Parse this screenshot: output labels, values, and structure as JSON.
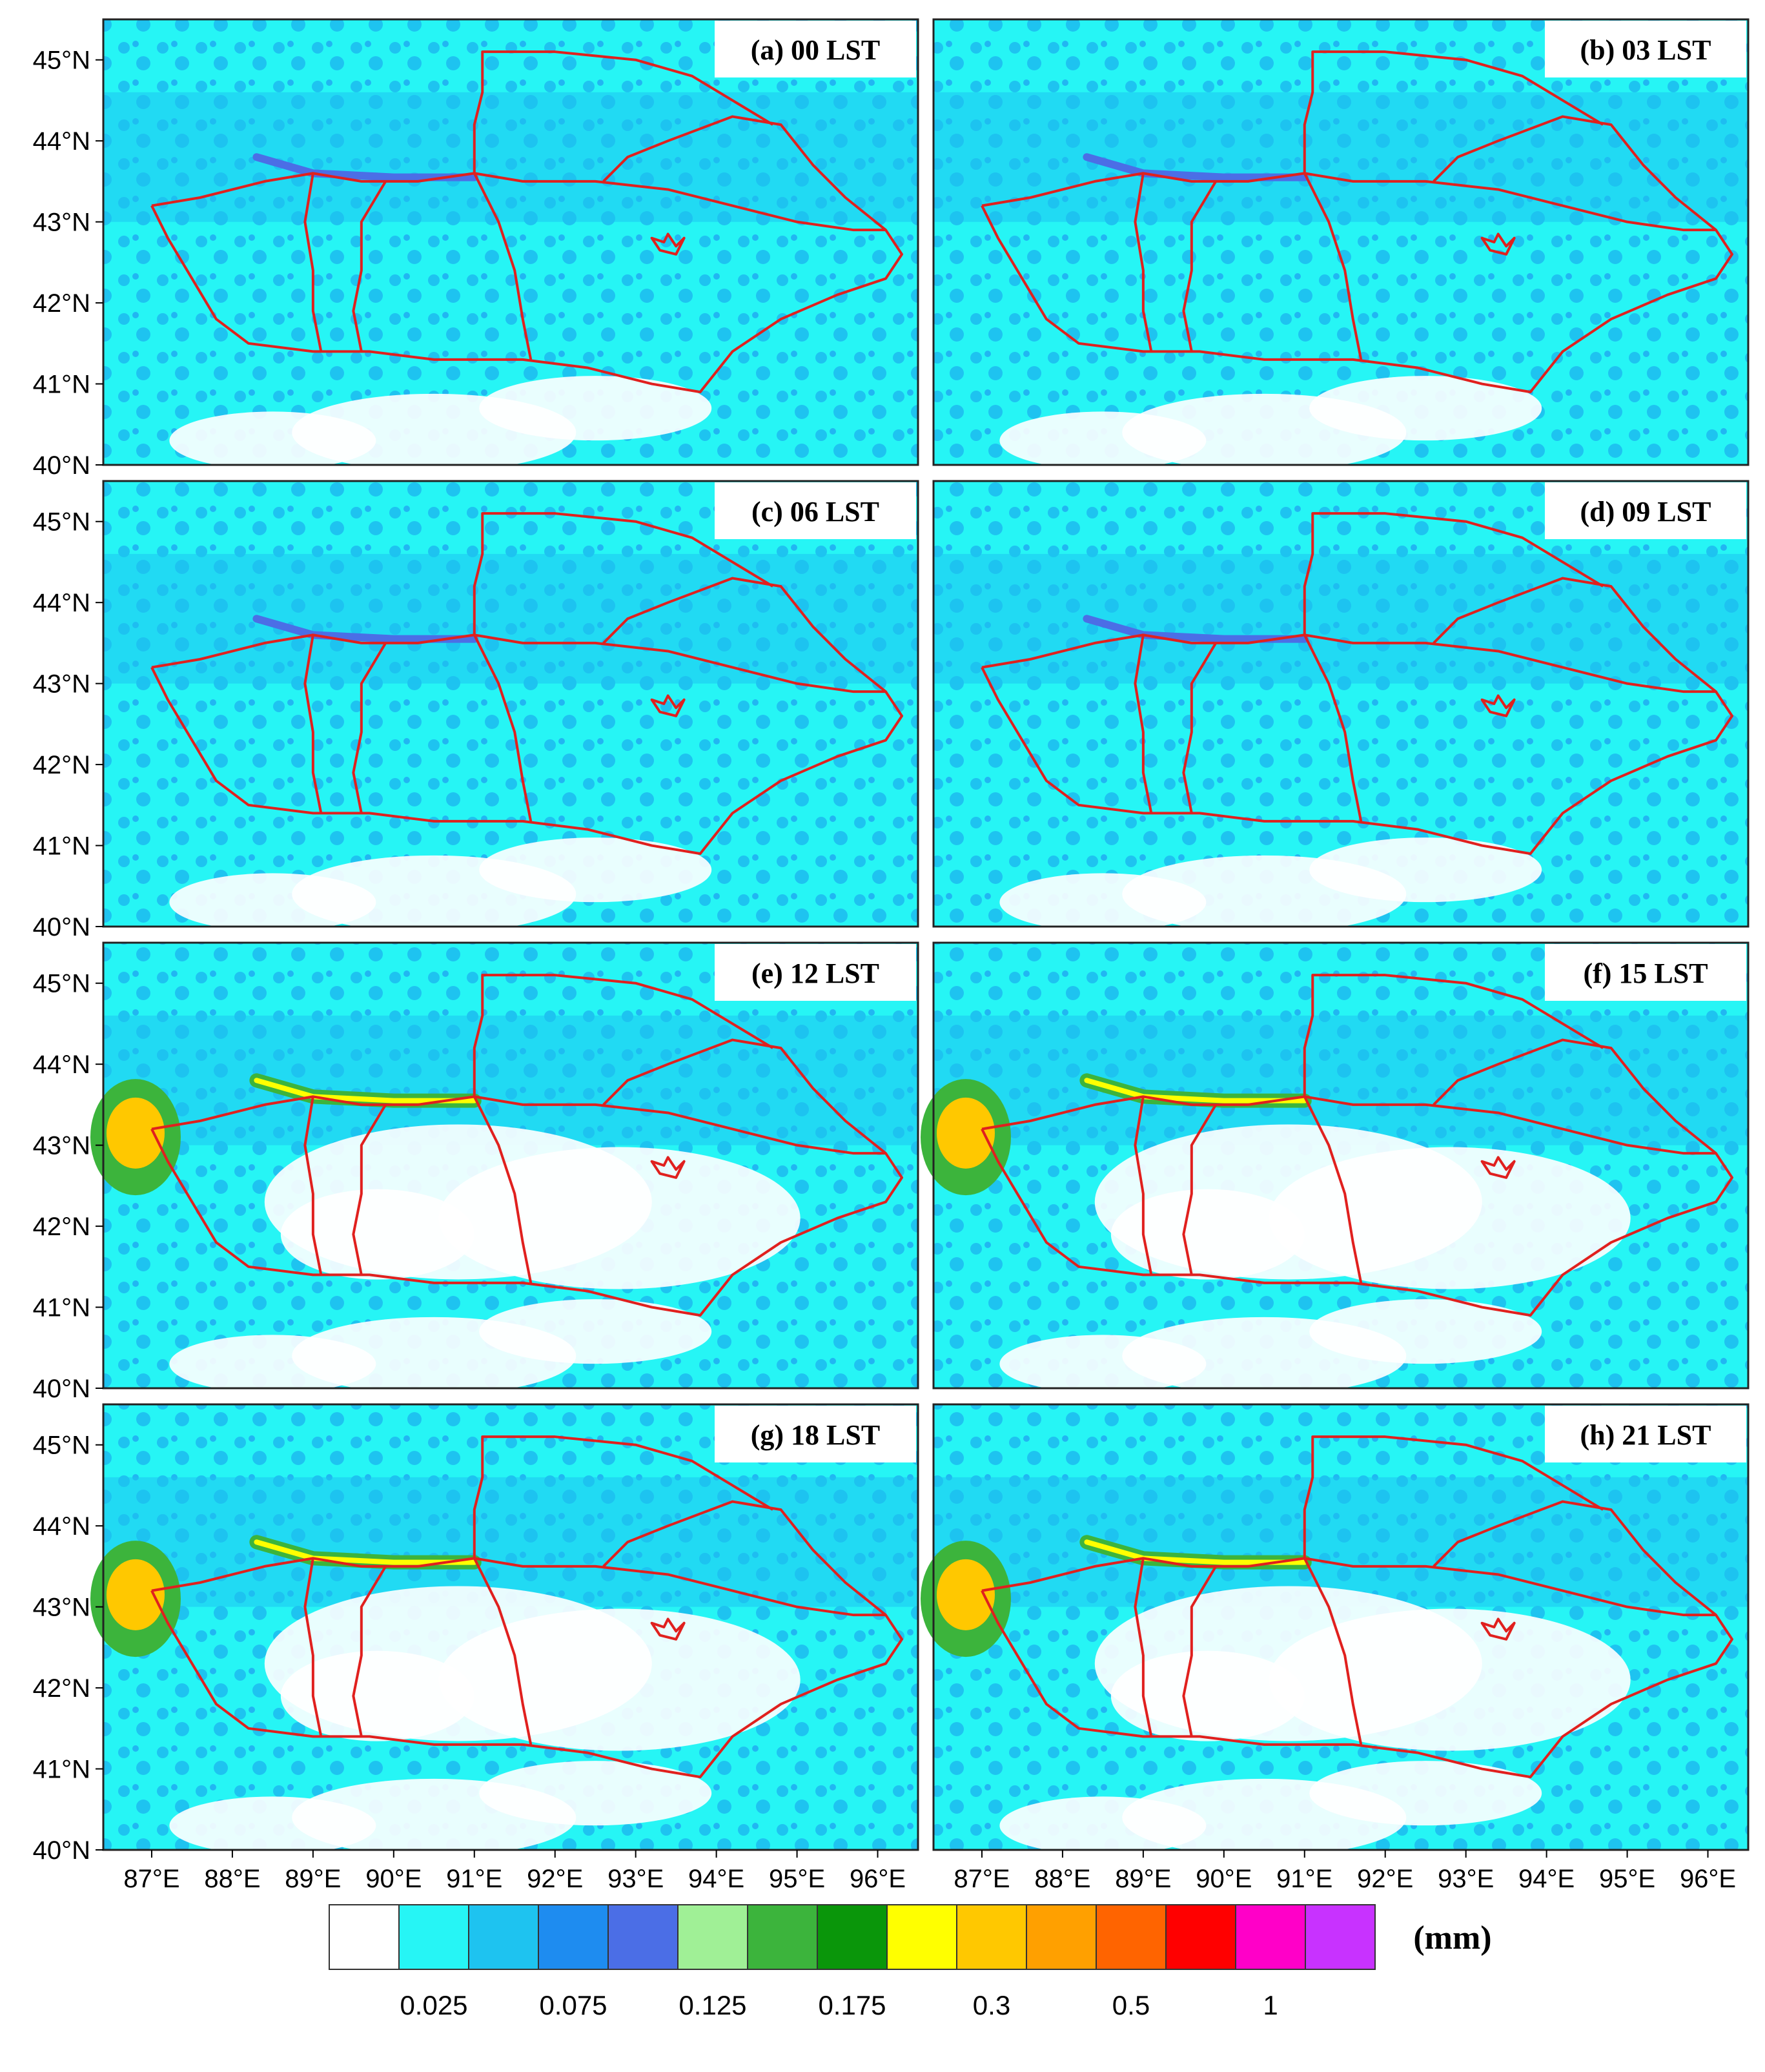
{
  "map": {
    "lon_range": [
      86.4,
      96.5
    ],
    "lat_range": [
      40.0,
      45.5
    ],
    "unit": "(mm)"
  },
  "panels": [
    {
      "label": "(a) 00 LST"
    },
    {
      "label": "(b) 03 LST"
    },
    {
      "label": "(c) 06 LST"
    },
    {
      "label": "(d) 09 LST"
    },
    {
      "label": "(e) 12 LST"
    },
    {
      "label": "(f) 15 LST"
    },
    {
      "label": "(g) 18 LST"
    },
    {
      "label": "(h) 21 LST"
    }
  ],
  "x_ticks": [
    "87°E",
    "88°E",
    "89°E",
    "90°E",
    "91°E",
    "92°E",
    "93°E",
    "94°E",
    "95°E",
    "96°E"
  ],
  "x_tick_values": [
    87,
    88,
    89,
    90,
    91,
    92,
    93,
    94,
    95,
    96
  ],
  "y_ticks": [
    "40°N",
    "41°N",
    "42°N",
    "43°N",
    "44°N",
    "45°N"
  ],
  "y_tick_values": [
    40,
    41,
    42,
    43,
    44,
    45
  ],
  "colorbar": {
    "colors": [
      "#ffffff",
      "#26f5f5",
      "#1ec3f0",
      "#1e8cf0",
      "#4b6ee6",
      "#a0f096",
      "#3cb43c",
      "#0a960a",
      "#ffff00",
      "#ffc800",
      "#ffa000",
      "#ff6400",
      "#ff0000",
      "#ff00c8",
      "#c832ff"
    ],
    "labels": [
      "0.025",
      "0.075",
      "0.125",
      "0.175",
      "0.3",
      "0.5",
      "1"
    ]
  },
  "colors": {
    "background_field": "#26f5f5",
    "boundary": "#e0201e"
  }
}
